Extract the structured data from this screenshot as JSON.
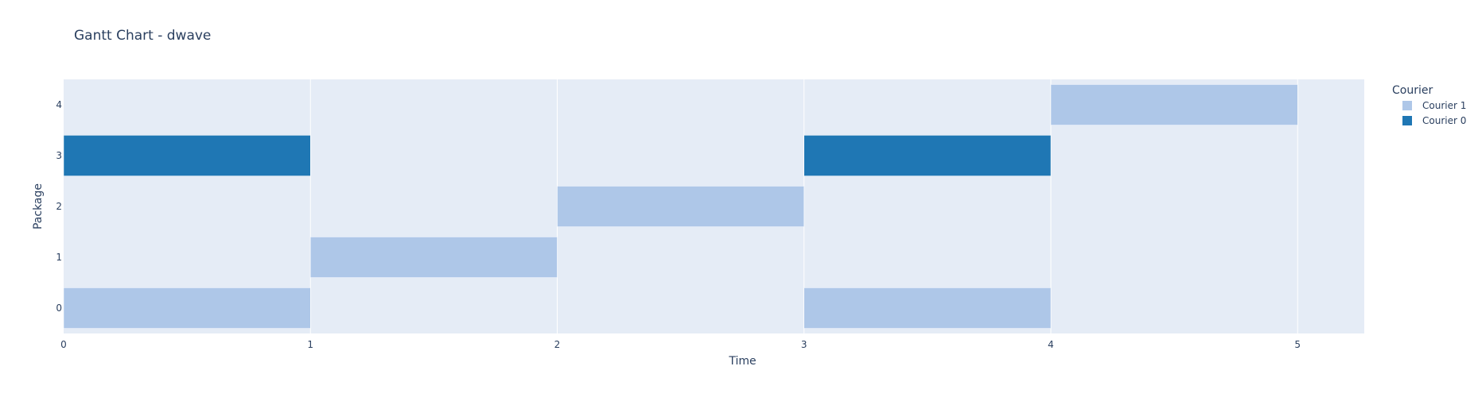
{
  "chart_data": {
    "type": "gantt",
    "title": "Gantt Chart - dwave",
    "xlabel": "Time",
    "ylabel": "Package",
    "xlim": [
      0,
      5.27
    ],
    "ylim": [
      -0.5,
      4.5
    ],
    "x_ticks": [
      "0",
      "1",
      "2",
      "3",
      "4",
      "5"
    ],
    "y_ticks": [
      "0",
      "1",
      "2",
      "3",
      "4"
    ],
    "legend_title": "Courier",
    "legend_placement": "top-right",
    "grid": true,
    "series": [
      {
        "name": "Courier 1",
        "color": "#aec7e8",
        "tasks": [
          {
            "package": 0,
            "start": 0,
            "end": 1
          },
          {
            "package": 1,
            "start": 1,
            "end": 2
          },
          {
            "package": 2,
            "start": 2,
            "end": 3
          },
          {
            "package": 0,
            "start": 3,
            "end": 4
          },
          {
            "package": 4,
            "start": 4,
            "end": 5
          }
        ]
      },
      {
        "name": "Courier 0",
        "color": "#1f77b4",
        "tasks": [
          {
            "package": 3,
            "start": 0,
            "end": 1
          },
          {
            "package": 3,
            "start": 3,
            "end": 4
          }
        ]
      }
    ],
    "plot_bg": "#e5ecf6",
    "grid_color": "#ffffff"
  }
}
